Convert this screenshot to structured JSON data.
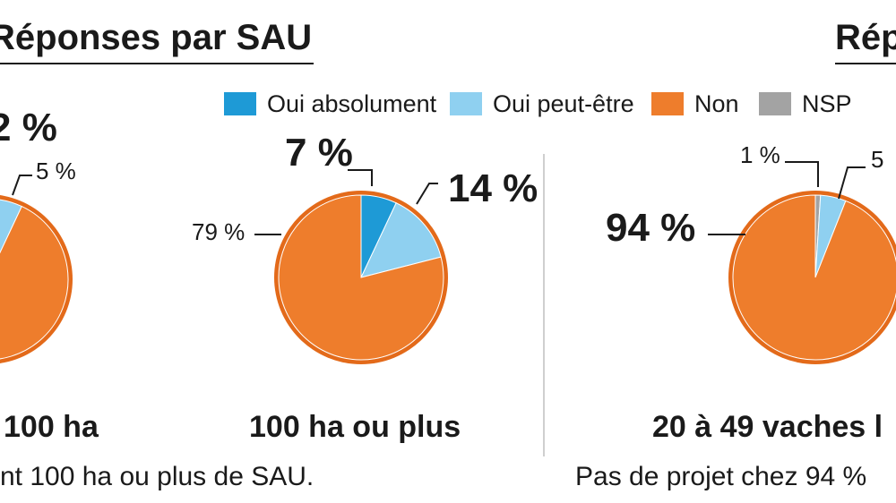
{
  "header": {
    "left_title": "Réponses par SAU",
    "right_title": "Rép"
  },
  "legend": [
    {
      "label": "Oui absolument",
      "color": "#1e9ad6",
      "icon": "swatch-square"
    },
    {
      "label": "Oui peut-être",
      "color": "#8fd0f0",
      "icon": "swatch-square"
    },
    {
      "label": "Non",
      "color": "#ee7d2c",
      "icon": "swatch-square"
    },
    {
      "label": "NSP",
      "color": "#a3a3a3",
      "icon": "swatch-square"
    }
  ],
  "chart_data": [
    {
      "type": "pie",
      "caption": "100 ha",
      "slices": [
        {
          "category": "Oui absolument",
          "value": null
        },
        {
          "category": "Oui peut-être",
          "value": 5
        },
        {
          "category": "Non",
          "value": null
        },
        {
          "category": "NSP",
          "value": null
        }
      ],
      "labels": {
        "top": "2 %",
        "small": "5 %"
      }
    },
    {
      "type": "pie",
      "caption": "100 ha ou plus",
      "slices": [
        {
          "category": "Oui absolument",
          "value": 7
        },
        {
          "category": "Oui peut-être",
          "value": 14
        },
        {
          "category": "Non",
          "value": 79
        }
      ],
      "labels": {
        "absolument": "7 %",
        "peut_etre": "14 %",
        "non": "79 %"
      }
    },
    {
      "type": "pie",
      "caption": "20 à 49 vaches l",
      "slices": [
        {
          "category": "NSP",
          "value": 1
        },
        {
          "category": "Oui peut-être",
          "value": 5
        },
        {
          "category": "Non",
          "value": 94
        }
      ],
      "labels": {
        "nsp": "1 %",
        "peut_etre": "5",
        "non": "94 %"
      }
    }
  ],
  "notes": {
    "left": "nt 100 ha ou plus de SAU.",
    "right": "Pas de projet chez 94 %"
  }
}
